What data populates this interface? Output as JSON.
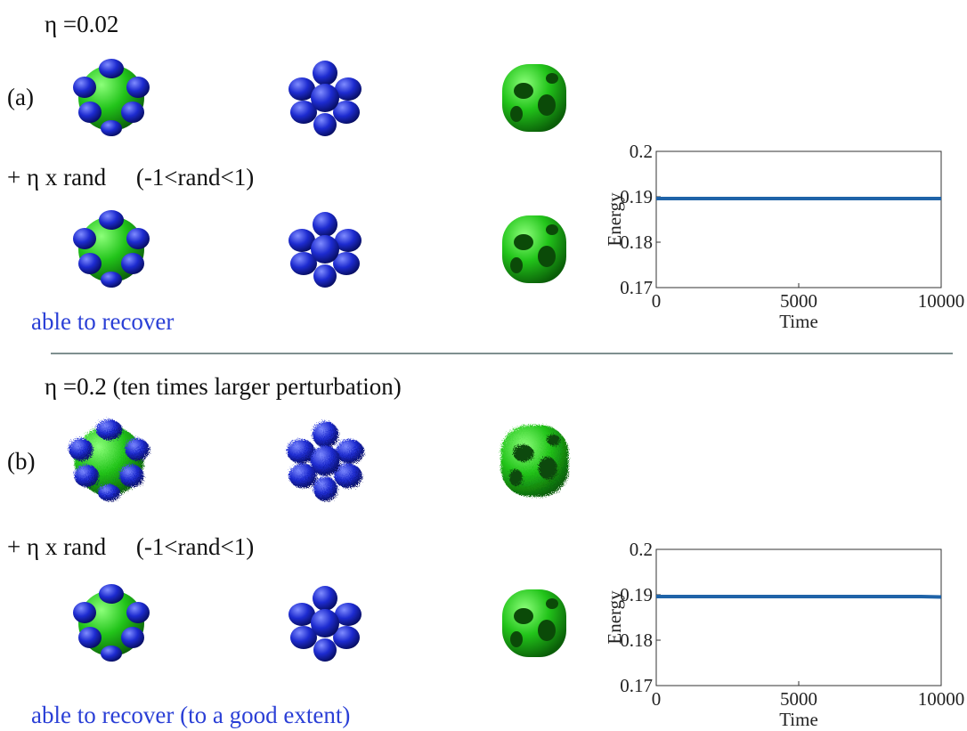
{
  "panels": [
    {
      "header": "η =0.02",
      "label": "(a)",
      "perturbation": "+ η x rand     (-1<rand<1)",
      "result": "able to recover"
    },
    {
      "header": "η =0.2 (ten times larger perturbation)",
      "label": "(b)",
      "perturbation": "+ η x rand     (-1<rand<1)",
      "result": "able to recover (to a good extent)"
    }
  ],
  "chart_data": [
    {
      "type": "line",
      "x_label": "Time",
      "y_label": "Energy",
      "x": [
        0,
        5000,
        10000
      ],
      "series": [
        {
          "color": "#1f63a8",
          "values": [
            0.1896,
            0.1896,
            0.1896
          ]
        }
      ],
      "xlim": [
        0,
        10000
      ],
      "ylim": [
        0.17,
        0.2
      ],
      "xticks": [
        0,
        5000,
        10000
      ],
      "yticks": [
        0.17,
        0.18,
        0.19,
        0.2
      ]
    },
    {
      "type": "line",
      "x_label": "Time",
      "y_label": "Energy",
      "x": [
        0,
        5000,
        9300,
        10000
      ],
      "series": [
        {
          "color": "#1f63a8",
          "values": [
            0.1896,
            0.1896,
            0.1896,
            0.1895
          ]
        }
      ],
      "xlim": [
        0,
        10000
      ],
      "ylim": [
        0.17,
        0.2
      ],
      "xticks": [
        0,
        5000,
        10000
      ],
      "yticks": [
        0.17,
        0.18,
        0.19,
        0.2
      ]
    }
  ]
}
